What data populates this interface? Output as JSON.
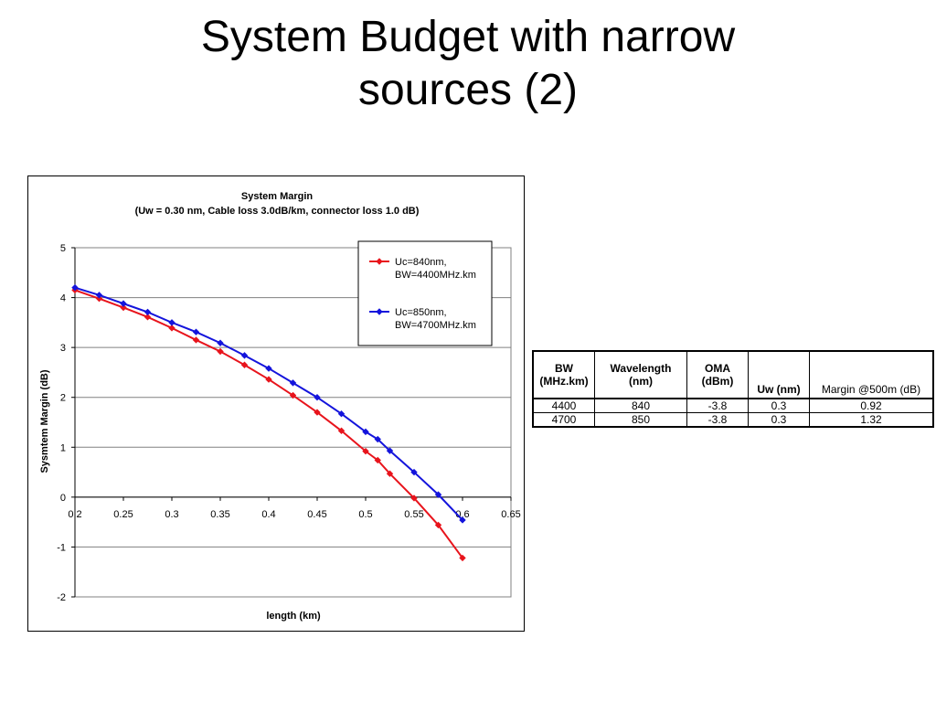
{
  "slide": {
    "title_line1": "System Budget with narrow",
    "title_line2": "sources (2)"
  },
  "chart_data": {
    "type": "line",
    "title": "System Margin",
    "subtitle": "(Uw = 0.30 nm, Cable loss 3.0dB/km, connector loss 1.0 dB)",
    "xlabel": "length (km)",
    "ylabel": "Sysmtem Margin (dB)",
    "xlim": [
      0.2,
      0.65
    ],
    "ylim": [
      -2,
      5
    ],
    "x_ticks": [
      0.2,
      0.25,
      0.3,
      0.35,
      0.4,
      0.45,
      0.5,
      0.55,
      0.6,
      0.65
    ],
    "x_tick_labels": [
      "0.2",
      "0.25",
      "0.3",
      "0.35",
      "0.4",
      "0.45",
      "0.5",
      "0.55",
      "0.6",
      "0.65"
    ],
    "y_ticks": [
      -2,
      -1,
      0,
      1,
      2,
      3,
      4,
      5
    ],
    "y_tick_labels": [
      "-2",
      "-1",
      "0",
      "1",
      "2",
      "3",
      "4",
      "5"
    ],
    "grid": "horizontal",
    "legend_position": "top-right",
    "series": [
      {
        "name": "Uc=840nm, BW=4400MHz.km",
        "legend_lines": [
          "Uc=840nm,",
          "BW=4400MHz.km"
        ],
        "color": "#e8141c",
        "x": [
          0.2,
          0.225,
          0.25,
          0.275,
          0.3,
          0.325,
          0.35,
          0.375,
          0.4,
          0.425,
          0.45,
          0.475,
          0.5,
          0.5125,
          0.525,
          0.55,
          0.575,
          0.6
        ],
        "y": [
          4.15,
          3.98,
          3.8,
          3.61,
          3.39,
          3.15,
          2.92,
          2.65,
          2.36,
          2.04,
          1.7,
          1.33,
          0.92,
          0.74,
          0.47,
          -0.02,
          -0.56,
          -1.22
        ]
      },
      {
        "name": "Uc=850nm, BW=4700MHz.km",
        "legend_lines": [
          "Uc=850nm,",
          "BW=4700MHz.km"
        ],
        "color": "#1414dc",
        "x": [
          0.2,
          0.225,
          0.25,
          0.275,
          0.3,
          0.325,
          0.35,
          0.375,
          0.4,
          0.425,
          0.45,
          0.475,
          0.5,
          0.5125,
          0.525,
          0.55,
          0.575,
          0.6
        ],
        "y": [
          4.2,
          4.05,
          3.88,
          3.71,
          3.5,
          3.31,
          3.09,
          2.84,
          2.58,
          2.29,
          2.0,
          1.67,
          1.31,
          1.16,
          0.93,
          0.5,
          0.05,
          -0.46
        ]
      }
    ]
  },
  "table": {
    "headers": [
      {
        "line1": "BW",
        "line2": "(MHz.km)"
      },
      {
        "line1": "Wavelength",
        "line2": "(nm)"
      },
      {
        "line1": "OMA",
        "line2": "(dBm)"
      },
      {
        "line1": "Uw (nm)"
      },
      {
        "line1": "Margin @500m (dB)"
      }
    ],
    "rows": [
      [
        "4400",
        "840",
        "-3.8",
        "0.3",
        "0.92"
      ],
      [
        "4700",
        "850",
        "-3.8",
        "0.3",
        "1.32"
      ]
    ]
  }
}
